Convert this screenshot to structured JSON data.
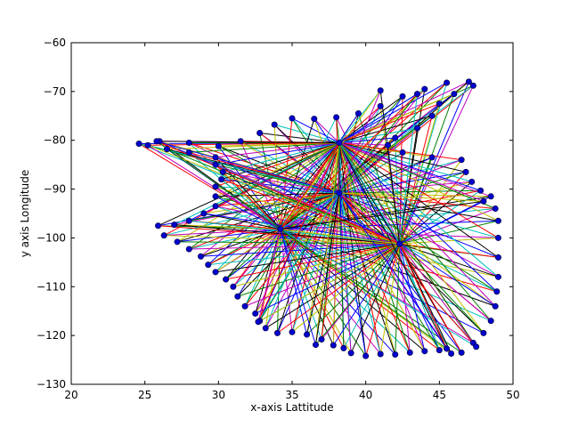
{
  "chart_data": {
    "type": "scatter",
    "title": "",
    "xlabel": "x-axis Lattitude",
    "ylabel": "y axis Longitude",
    "xlim": [
      20,
      50
    ],
    "ylim": [
      -130,
      -60
    ],
    "xticks": [
      20,
      25,
      30,
      35,
      40,
      45,
      50
    ],
    "yticks": [
      -60,
      -70,
      -80,
      -90,
      -100,
      -110,
      -120,
      -130
    ],
    "grid": false,
    "legend": "none",
    "marker_color": "#0000cc",
    "line_colors": [
      "#0000ff",
      "#008000",
      "#ff0000",
      "#00bfbf",
      "#bf00bf",
      "#bfbf00",
      "#000000"
    ],
    "hubs": [
      {
        "x": 38.2,
        "y": -80.5
      },
      {
        "x": 38.2,
        "y": -90.8
      },
      {
        "x": 34.2,
        "y": -98.2
      },
      {
        "x": 42.3,
        "y": -101.2
      }
    ],
    "boundary_points": [
      {
        "x": 24.6,
        "y": -80.7
      },
      {
        "x": 26.0,
        "y": -80.2
      },
      {
        "x": 28.0,
        "y": -80.5
      },
      {
        "x": 30.0,
        "y": -81.2
      },
      {
        "x": 31.5,
        "y": -80.2
      },
      {
        "x": 32.8,
        "y": -78.5
      },
      {
        "x": 33.8,
        "y": -76.8
      },
      {
        "x": 35.0,
        "y": -75.5
      },
      {
        "x": 36.5,
        "y": -75.6
      },
      {
        "x": 38.0,
        "y": -75.3
      },
      {
        "x": 39.5,
        "y": -74.5
      },
      {
        "x": 41.0,
        "y": -73.0
      },
      {
        "x": 42.5,
        "y": -71.0
      },
      {
        "x": 44.0,
        "y": -69.5
      },
      {
        "x": 45.5,
        "y": -68.2
      },
      {
        "x": 47.0,
        "y": -68.0
      },
      {
        "x": 47.3,
        "y": -68.8
      },
      {
        "x": 46.0,
        "y": -70.5
      },
      {
        "x": 45.0,
        "y": -72.5
      },
      {
        "x": 44.5,
        "y": -75.0
      },
      {
        "x": 43.5,
        "y": -77.5
      },
      {
        "x": 42.0,
        "y": -79.5
      },
      {
        "x": 41.5,
        "y": -81.0
      },
      {
        "x": 42.5,
        "y": -82.5
      },
      {
        "x": 44.5,
        "y": -83.5
      },
      {
        "x": 46.5,
        "y": -84.0
      },
      {
        "x": 46.8,
        "y": -86.5
      },
      {
        "x": 47.2,
        "y": -88.5
      },
      {
        "x": 47.8,
        "y": -90.3
      },
      {
        "x": 48.5,
        "y": -91.5
      },
      {
        "x": 48.8,
        "y": -94.0
      },
      {
        "x": 49.0,
        "y": -96.5
      },
      {
        "x": 49.0,
        "y": -100.0
      },
      {
        "x": 49.0,
        "y": -104.0
      },
      {
        "x": 49.0,
        "y": -108.0
      },
      {
        "x": 48.9,
        "y": -111.0
      },
      {
        "x": 48.8,
        "y": -114.0
      },
      {
        "x": 48.5,
        "y": -117.0
      },
      {
        "x": 48.0,
        "y": -119.5
      },
      {
        "x": 47.3,
        "y": -121.5
      },
      {
        "x": 46.5,
        "y": -123.5
      },
      {
        "x": 45.8,
        "y": -123.7
      },
      {
        "x": 45.0,
        "y": -123.0
      },
      {
        "x": 44.0,
        "y": -123.2
      },
      {
        "x": 43.0,
        "y": -123.5
      },
      {
        "x": 42.0,
        "y": -123.9
      },
      {
        "x": 41.0,
        "y": -123.8
      },
      {
        "x": 40.0,
        "y": -124.2
      },
      {
        "x": 39.0,
        "y": -123.6
      },
      {
        "x": 38.5,
        "y": -122.6
      },
      {
        "x": 37.8,
        "y": -122.0
      },
      {
        "x": 37.0,
        "y": -120.8
      },
      {
        "x": 36.0,
        "y": -119.8
      },
      {
        "x": 35.0,
        "y": -119.3
      },
      {
        "x": 34.0,
        "y": -119.5
      },
      {
        "x": 33.2,
        "y": -118.5
      },
      {
        "x": 32.8,
        "y": -117.0
      },
      {
        "x": 32.5,
        "y": -115.5
      },
      {
        "x": 31.8,
        "y": -114.0
      },
      {
        "x": 31.3,
        "y": -112.0
      },
      {
        "x": 31.0,
        "y": -110.0
      },
      {
        "x": 30.5,
        "y": -108.5
      },
      {
        "x": 29.8,
        "y": -107.0
      },
      {
        "x": 29.3,
        "y": -105.5
      },
      {
        "x": 28.8,
        "y": -103.8
      },
      {
        "x": 28.0,
        "y": -102.3
      },
      {
        "x": 27.2,
        "y": -100.8
      },
      {
        "x": 26.3,
        "y": -99.5
      },
      {
        "x": 25.9,
        "y": -97.5
      },
      {
        "x": 27.0,
        "y": -97.3
      },
      {
        "x": 28.0,
        "y": -96.5
      },
      {
        "x": 29.0,
        "y": -95.0
      },
      {
        "x": 29.8,
        "y": -93.5
      },
      {
        "x": 29.8,
        "y": -91.5
      },
      {
        "x": 29.8,
        "y": -89.5
      },
      {
        "x": 30.2,
        "y": -88.0
      },
      {
        "x": 30.3,
        "y": -86.5
      },
      {
        "x": 29.8,
        "y": -85.0
      },
      {
        "x": 29.8,
        "y": -83.5
      },
      {
        "x": 28.0,
        "y": -82.5
      },
      {
        "x": 26.5,
        "y": -81.8
      },
      {
        "x": 25.2,
        "y": -81.0
      },
      {
        "x": 25.8,
        "y": -80.2
      },
      {
        "x": 41.0,
        "y": -69.8
      },
      {
        "x": 43.5,
        "y": -70.5
      },
      {
        "x": 48.0,
        "y": -92.5
      },
      {
        "x": 47.5,
        "y": -122.3
      },
      {
        "x": 36.6,
        "y": -121.9
      },
      {
        "x": 32.7,
        "y": -117.2
      },
      {
        "x": 45.5,
        "y": -122.7
      }
    ]
  },
  "axes": {
    "xtick_labels": [
      "20",
      "25",
      "30",
      "35",
      "40",
      "45",
      "50"
    ],
    "ytick_labels": [
      "−60",
      "−70",
      "−80",
      "−90",
      "−100",
      "−110",
      "−120",
      "−130"
    ]
  }
}
